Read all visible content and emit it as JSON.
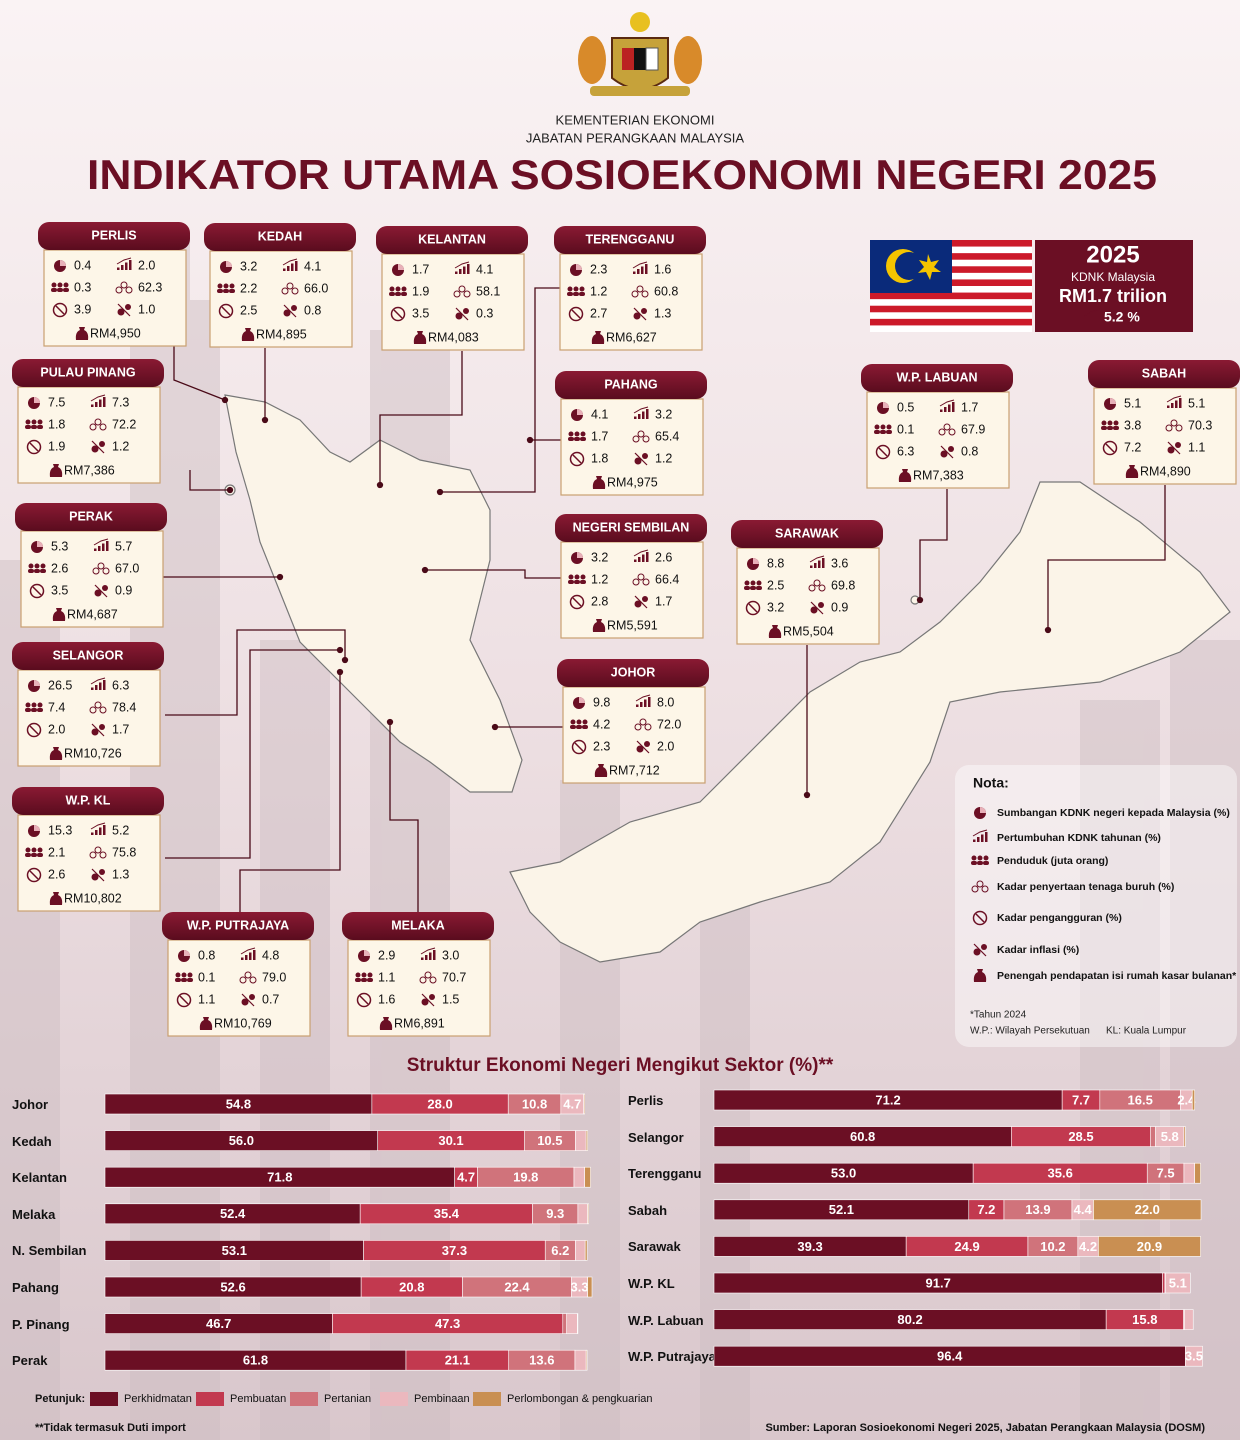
{
  "header": {
    "ministry": "KEMENTERIAN EKONOMI",
    "department": "JABATAN PERANGKAAN MALAYSIA",
    "title": "INDIKATOR UTAMA SOSIOEKONOMI NEGERI 2025"
  },
  "national": {
    "year": "2025",
    "label": "KDNK Malaysia",
    "gdp": "RM1.7 trilion",
    "growth": "5.2 %"
  },
  "states": [
    {
      "name": "PERLIS",
      "gdp_share": "0.4",
      "growth": "2.0",
      "population": "0.3",
      "lfpr": "62.3",
      "unemployment": "3.9",
      "inflation": "1.0",
      "income": "RM4,950"
    },
    {
      "name": "KEDAH",
      "gdp_share": "3.2",
      "growth": "4.1",
      "population": "2.2",
      "lfpr": "66.0",
      "unemployment": "2.5",
      "inflation": "0.8",
      "income": "RM4,895"
    },
    {
      "name": "KELANTAN",
      "gdp_share": "1.7",
      "growth": "4.1",
      "population": "1.9",
      "lfpr": "58.1",
      "unemployment": "3.5",
      "inflation": "0.3",
      "income": "RM4,083"
    },
    {
      "name": "TERENGGANU",
      "gdp_share": "2.3",
      "growth": "1.6",
      "population": "1.2",
      "lfpr": "60.8",
      "unemployment": "2.7",
      "inflation": "1.3",
      "income": "RM6,627"
    },
    {
      "name": "PULAU PINANG",
      "gdp_share": "7.5",
      "growth": "7.3",
      "population": "1.8",
      "lfpr": "72.2",
      "unemployment": "1.9",
      "inflation": "1.2",
      "income": "RM7,386"
    },
    {
      "name": "PAHANG",
      "gdp_share": "4.1",
      "growth": "3.2",
      "population": "1.7",
      "lfpr": "65.4",
      "unemployment": "1.8",
      "inflation": "1.2",
      "income": "RM4,975"
    },
    {
      "name": "W.P. LABUAN",
      "gdp_share": "0.5",
      "growth": "1.7",
      "population": "0.1",
      "lfpr": "67.9",
      "unemployment": "6.3",
      "inflation": "0.8",
      "income": "RM7,383"
    },
    {
      "name": "SABAH",
      "gdp_share": "5.1",
      "growth": "5.1",
      "population": "3.8",
      "lfpr": "70.3",
      "unemployment": "7.2",
      "inflation": "1.1",
      "income": "RM4,890"
    },
    {
      "name": "PERAK",
      "gdp_share": "5.3",
      "growth": "5.7",
      "population": "2.6",
      "lfpr": "67.0",
      "unemployment": "3.5",
      "inflation": "0.9",
      "income": "RM4,687"
    },
    {
      "name": "NEGERI SEMBILAN",
      "gdp_share": "3.2",
      "growth": "2.6",
      "population": "1.2",
      "lfpr": "66.4",
      "unemployment": "2.8",
      "inflation": "1.7",
      "income": "RM5,591"
    },
    {
      "name": "SARAWAK",
      "gdp_share": "8.8",
      "growth": "3.6",
      "population": "2.5",
      "lfpr": "69.8",
      "unemployment": "3.2",
      "inflation": "0.9",
      "income": "RM5,504"
    },
    {
      "name": "SELANGOR",
      "gdp_share": "26.5",
      "growth": "6.3",
      "population": "7.4",
      "lfpr": "78.4",
      "unemployment": "2.0",
      "inflation": "1.7",
      "income": "RM10,726"
    },
    {
      "name": "JOHOR",
      "gdp_share": "9.8",
      "growth": "8.0",
      "population": "4.2",
      "lfpr": "72.0",
      "unemployment": "2.3",
      "inflation": "2.0",
      "income": "RM7,712"
    },
    {
      "name": "W.P. KL",
      "gdp_share": "15.3",
      "growth": "5.2",
      "population": "2.1",
      "lfpr": "75.8",
      "unemployment": "2.6",
      "inflation": "1.3",
      "income": "RM10,802"
    },
    {
      "name": "W.P. PUTRAJAYA",
      "gdp_share": "0.8",
      "growth": "4.8",
      "population": "0.1",
      "lfpr": "79.0",
      "unemployment": "1.1",
      "inflation": "0.7",
      "income": "RM10,769"
    },
    {
      "name": "MELAKA",
      "gdp_share": "2.9",
      "growth": "3.0",
      "population": "1.1",
      "lfpr": "70.7",
      "unemployment": "1.6",
      "inflation": "1.5",
      "income": "RM6,891"
    }
  ],
  "nota": {
    "title": "Nota:",
    "items": [
      "Sumbangan KDNK negeri kepada Malaysia (%)",
      "Pertumbuhan KDNK tahunan (%)",
      "Penduduk (juta orang)",
      "Kadar penyertaan tenaga buruh (%)",
      "Kadar pengangguran (%)",
      "Kadar inflasi (%)",
      "Penengah pendapatan isi rumah kasar bulanan*"
    ],
    "notes": [
      "*Tahun 2024",
      "W.P.: Wilayah Persekutuan",
      "KL: Kuala Lumpur"
    ]
  },
  "sector_notes": {
    "legend_label": "Petunjuk:",
    "footnote": "**Tidak termasuk Duti import",
    "source": "Sumber: Laporan Sosioekonomi Negeri 2025, Jabatan Perangkaan Malaysia (DOSM)"
  },
  "chart_data": [
    {
      "type": "bar",
      "title": "Struktur Ekonomi Negeri Mengikut Sektor (%)**",
      "stacked": true,
      "orientation": "horizontal",
      "xlim": [
        0,
        100
      ],
      "categories": [
        "Johor",
        "Kedah",
        "Kelantan",
        "Melaka",
        "N. Sembilan",
        "Pahang",
        "P. Pinang",
        "Perak"
      ],
      "series": [
        {
          "name": "Perkhidmatan",
          "color": "#6b0f24",
          "values": [
            54.8,
            56.0,
            71.8,
            52.4,
            53.1,
            52.6,
            46.7,
            61.8
          ],
          "value_labels": [
            "54.8",
            "56.0",
            "71.8",
            "52.4",
            "53.1",
            "52.6",
            "46.7",
            "61.8"
          ]
        },
        {
          "name": "Pembuatan",
          "color": "#c2394f",
          "values": [
            28.0,
            30.1,
            4.7,
            35.4,
            37.3,
            20.8,
            47.3,
            21.1
          ],
          "value_labels": [
            "28.0",
            "30.1",
            "4.7",
            "35.4",
            "37.3",
            "20.8",
            "47.3",
            "21.1"
          ]
        },
        {
          "name": "Pertanian",
          "color": "#d0737b",
          "values": [
            10.8,
            10.5,
            19.8,
            9.3,
            6.2,
            22.4,
            0.8,
            13.6
          ],
          "value_labels": [
            "10.8",
            "10.5",
            "19.8",
            "9.3",
            "6.2",
            "22.4",
            null,
            "13.6"
          ]
        },
        {
          "name": "Pembinaan",
          "color": "#ebb8be",
          "values": [
            4.7,
            2.2,
            2.2,
            2.0,
            2.0,
            3.3,
            2.2,
            2.3
          ],
          "value_labels": [
            "4.7",
            null,
            null,
            null,
            null,
            "3.3",
            null,
            null
          ]
        },
        {
          "name": "Perlombongan & pengkuarian",
          "color": "#c98f52",
          "values": [
            0.2,
            0.3,
            1.2,
            0.2,
            0.4,
            0.9,
            0.1,
            0.2
          ],
          "value_labels": [
            null,
            null,
            null,
            null,
            null,
            null,
            null,
            null
          ]
        }
      ]
    },
    {
      "type": "bar",
      "stacked": true,
      "orientation": "horizontal",
      "xlim": [
        0,
        100
      ],
      "categories": [
        "Perlis",
        "Selangor",
        "Terengganu",
        "Sabah",
        "Sarawak",
        "W.P. KL",
        "W.P. Labuan",
        "W.P. Putrajaya"
      ],
      "series": [
        {
          "name": "Perkhidmatan",
          "color": "#6b0f24",
          "values": [
            71.2,
            60.8,
            53.0,
            52.1,
            39.3,
            91.7,
            80.2,
            96.4
          ],
          "value_labels": [
            "71.2",
            "60.8",
            "53.0",
            "52.1",
            "39.3",
            "91.7",
            "80.2",
            "96.4"
          ]
        },
        {
          "name": "Pembuatan",
          "color": "#c2394f",
          "values": [
            7.7,
            28.5,
            35.6,
            7.2,
            24.9,
            0.5,
            15.8,
            0.0
          ],
          "value_labels": [
            "7.7",
            "28.5",
            "35.6",
            "7.2",
            "24.9",
            null,
            "15.8",
            null
          ]
        },
        {
          "name": "Pertanian",
          "color": "#d0737b",
          "values": [
            16.5,
            1.0,
            7.5,
            13.9,
            10.2,
            0.1,
            0.2,
            0.0
          ],
          "value_labels": [
            "16.5",
            null,
            "7.5",
            "13.9",
            "10.2",
            null,
            null,
            null
          ]
        },
        {
          "name": "Pembinaan",
          "color": "#ebb8be",
          "values": [
            2.4,
            5.8,
            2.2,
            4.4,
            4.2,
            5.1,
            1.8,
            3.5
          ],
          "value_labels": [
            "2.4",
            "5.8",
            null,
            "4.4",
            "4.2",
            "5.1",
            null,
            "3.5"
          ]
        },
        {
          "name": "Perlombongan & pengkuarian",
          "color": "#c98f52",
          "values": [
            0.5,
            0.3,
            1.2,
            22.0,
            20.9,
            0.0,
            0.0,
            0.0
          ],
          "value_labels": [
            null,
            null,
            null,
            "22.0",
            "20.9",
            null,
            null,
            null
          ]
        }
      ]
    }
  ]
}
